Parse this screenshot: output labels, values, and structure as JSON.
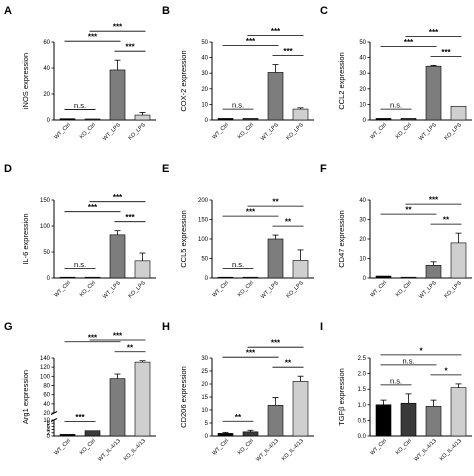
{
  "colors": {
    "WT_Ctrl": "#000000",
    "KO_Ctrl": "#3a3a3a",
    "WT_stim": "#7d7d7d",
    "KO_stim": "#cfcfcf",
    "axis": "#000000"
  },
  "chart_data": [
    {
      "id": "A",
      "type": "bar",
      "letter": "A",
      "ylabel": "iNOS expression",
      "categories": [
        "WT_Ctrl",
        "KO_Ctrl",
        "WT_LPS",
        "KO_LPS"
      ],
      "values": [
        1,
        0.8,
        38.5,
        3.8
      ],
      "errors": [
        0.2,
        0.2,
        7.5,
        2.0
      ],
      "ylim": [
        0,
        60
      ],
      "yticks": [
        0,
        20,
        40,
        60
      ],
      "grid": false,
      "significance": [
        {
          "from": 0,
          "to": 1,
          "label": "n.s."
        },
        {
          "from": 0,
          "to": 2,
          "label": "***"
        },
        {
          "from": 1,
          "to": 3,
          "label": "***"
        },
        {
          "from": 2,
          "to": 3,
          "label": "***"
        }
      ]
    },
    {
      "id": "B",
      "type": "bar",
      "letter": "B",
      "ylabel": "COX-2 expression",
      "categories": [
        "WT_Ctrl",
        "KO_Ctrl",
        "WT_LPS",
        "KO_LPS"
      ],
      "values": [
        1,
        1,
        30.5,
        7
      ],
      "errors": [
        0.2,
        0.2,
        5,
        0.8
      ],
      "ylim": [
        0,
        50
      ],
      "yticks": [
        0,
        10,
        20,
        30,
        40,
        50
      ],
      "grid": false,
      "significance": [
        {
          "from": 0,
          "to": 1,
          "label": "n.s."
        },
        {
          "from": 0,
          "to": 2,
          "label": "***"
        },
        {
          "from": 1,
          "to": 3,
          "label": "***"
        },
        {
          "from": 2,
          "to": 3,
          "label": "***"
        }
      ]
    },
    {
      "id": "C",
      "type": "bar",
      "letter": "C",
      "ylabel": "CCL2 expression",
      "categories": [
        "WT_Ctrl",
        "KO_Ctrl",
        "WT_LPS",
        "KO_LPS"
      ],
      "values": [
        1,
        1,
        34.5,
        8.8
      ],
      "errors": [
        0.2,
        0.2,
        0.5,
        0.3
      ],
      "ylim": [
        0,
        50
      ],
      "yticks": [
        0,
        10,
        20,
        30,
        40,
        50
      ],
      "grid": false,
      "significance": [
        {
          "from": 0,
          "to": 1,
          "label": "n.s."
        },
        {
          "from": 0,
          "to": 2,
          "label": "***"
        },
        {
          "from": 1,
          "to": 3,
          "label": "***"
        },
        {
          "from": 2,
          "to": 3,
          "label": "***"
        }
      ]
    },
    {
      "id": "D",
      "type": "bar",
      "letter": "D",
      "ylabel": "IL-6 expression",
      "categories": [
        "WT_Ctrl",
        "KO_Ctrl",
        "WT_LPS",
        "KO_LPS"
      ],
      "values": [
        1,
        1,
        83,
        33
      ],
      "errors": [
        0.2,
        0.2,
        8,
        15
      ],
      "ylim": [
        0,
        150
      ],
      "yticks": [
        0,
        50,
        100,
        150
      ],
      "grid": false,
      "significance": [
        {
          "from": 0,
          "to": 1,
          "label": "n.s."
        },
        {
          "from": 0,
          "to": 2,
          "label": "***"
        },
        {
          "from": 1,
          "to": 3,
          "label": "***"
        },
        {
          "from": 2,
          "to": 3,
          "label": "***"
        }
      ]
    },
    {
      "id": "E",
      "type": "bar",
      "letter": "E",
      "ylabel": "CCL5 expression",
      "categories": [
        "WT_Ctrl",
        "KO_Ctrl",
        "WT_LPS",
        "KO_LPS"
      ],
      "values": [
        1,
        1,
        100,
        45
      ],
      "errors": [
        0.2,
        0.2,
        10,
        27
      ],
      "ylim": [
        0,
        200
      ],
      "yticks": [
        0,
        50,
        100,
        150,
        200
      ],
      "grid": false,
      "significance": [
        {
          "from": 0,
          "to": 1,
          "label": "n.s."
        },
        {
          "from": 0,
          "to": 2,
          "label": "***"
        },
        {
          "from": 1,
          "to": 3,
          "label": "**"
        },
        {
          "from": 2,
          "to": 3,
          "label": "**"
        }
      ]
    },
    {
      "id": "F",
      "type": "bar",
      "letter": "F",
      "ylabel": "CD47 expression",
      "categories": [
        "WT_Ctrl",
        "KO_Ctrl",
        "WT_LPS",
        "KO_LPS"
      ],
      "values": [
        1,
        0.4,
        6.5,
        18
      ],
      "errors": [
        0.2,
        0.1,
        1.8,
        5
      ],
      "ylim": [
        0,
        40
      ],
      "yticks": [
        0,
        10,
        20,
        30,
        40
      ],
      "grid": false,
      "significance": [
        {
          "from": 0,
          "to": 2,
          "label": "**"
        },
        {
          "from": 1,
          "to": 3,
          "label": "***"
        },
        {
          "from": 2,
          "to": 3,
          "label": "**"
        }
      ]
    },
    {
      "id": "G",
      "type": "bar",
      "letter": "G",
      "ylabel": "Arg1 expression",
      "categories": [
        "WT_Ctrl",
        "KO_Ctrl",
        "WT_IL-4/13",
        "KO_IL-4/13"
      ],
      "values": [
        1,
        3.3,
        95,
        131
      ],
      "errors": [
        0.2,
        0.2,
        10,
        3
      ],
      "axis_break": {
        "lower_max": 10,
        "upper_min": 20
      },
      "yticks_lower": [
        0,
        2,
        4,
        6,
        8,
        10
      ],
      "yticks_upper": [
        20,
        40,
        60,
        80,
        100,
        120,
        140
      ],
      "ytick_labels_lower": [
        "0",
        "2",
        "4",
        "6",
        "8",
        "10"
      ],
      "ytick_labels_upper": [
        "20",
        "40",
        "60",
        "80",
        "100",
        "120",
        "140"
      ],
      "grid": false,
      "significance": [
        {
          "from": 0,
          "to": 1,
          "label": "***"
        },
        {
          "from": 0,
          "to": 2,
          "label": "***"
        },
        {
          "from": 1,
          "to": 3,
          "label": "***"
        },
        {
          "from": 2,
          "to": 3,
          "label": "**"
        }
      ]
    },
    {
      "id": "H",
      "type": "bar",
      "letter": "H",
      "ylabel": "CD206 expression",
      "categories": [
        "WT_Ctrl",
        "KO_Ctrl",
        "WT_IL-4/13",
        "KO_IL-4/13"
      ],
      "values": [
        1,
        1.6,
        11.8,
        21
      ],
      "errors": [
        0.4,
        0.6,
        3,
        2
      ],
      "ylim": [
        0,
        30
      ],
      "yticks": [
        0,
        5,
        10,
        15,
        20,
        25,
        30
      ],
      "grid": false,
      "significance": [
        {
          "from": 0,
          "to": 1,
          "label": "**"
        },
        {
          "from": 0,
          "to": 2,
          "label": "***"
        },
        {
          "from": 1,
          "to": 3,
          "label": "***"
        },
        {
          "from": 2,
          "to": 3,
          "label": "**"
        }
      ]
    },
    {
      "id": "I",
      "type": "bar",
      "letter": "I",
      "ylabel": "TGFβ expression",
      "categories": [
        "WT_Ctrl",
        "KO_Ctrl",
        "WT_IL-4/13",
        "KO_IL-4/13"
      ],
      "values": [
        1,
        1.05,
        0.95,
        1.55
      ],
      "errors": [
        0.15,
        0.3,
        0.2,
        0.12
      ],
      "ylim": [
        0,
        2.5
      ],
      "yticks": [
        0,
        0.5,
        1,
        1.5,
        2,
        2.5
      ],
      "ytick_labels": [
        "0.0",
        "0.5",
        "1.0",
        "1.5",
        "2.0",
        "2.5"
      ],
      "grid": false,
      "significance": [
        {
          "from": 0,
          "to": 1,
          "label": "n.s."
        },
        {
          "from": 0,
          "to": 2,
          "label": "n.s."
        },
        {
          "from": 0,
          "to": 3,
          "label": "*"
        },
        {
          "from": 2,
          "to": 3,
          "label": "*"
        }
      ]
    }
  ]
}
